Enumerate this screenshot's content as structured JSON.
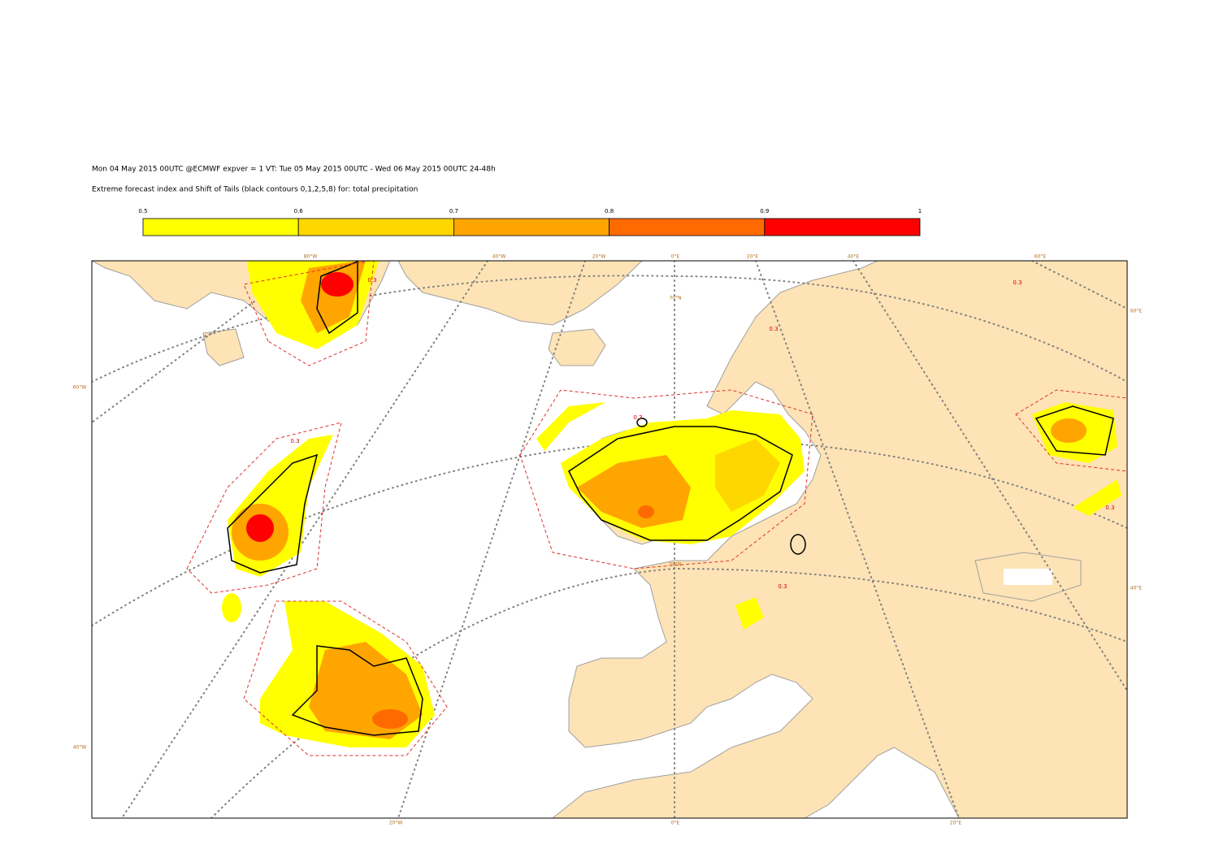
{
  "header": {
    "line1": "Mon 04 May 2015 00UTC @ECMWF expver = 1 VT: Tue 05 May 2015 00UTC - Wed 06 May 2015 00UTC  24-48h",
    "line2": "Extreme forecast index and Shift of Tails (black contours 0,1,2,5,8) for: total precipitation"
  },
  "colorbar": {
    "ticks": [
      0.5,
      0.6,
      0.7,
      0.8,
      0.9,
      1
    ],
    "colors": [
      "#ffff00",
      "#ffd700",
      "#ffa500",
      "#ff6a00",
      "#ff0000"
    ]
  },
  "graticule_labels": [
    "80°W",
    "40°W",
    "20°W",
    "0°E",
    "20°E",
    "40°E",
    "60°E",
    "60°E",
    "40°E",
    "60°W",
    "40°W",
    "20°W",
    "0°E",
    "20°E",
    "70°N",
    "50°N"
  ],
  "contour_labels": [
    "0.3",
    "0.3",
    "0.3",
    "0.3",
    "0.3",
    "0.3",
    "0.3"
  ]
}
